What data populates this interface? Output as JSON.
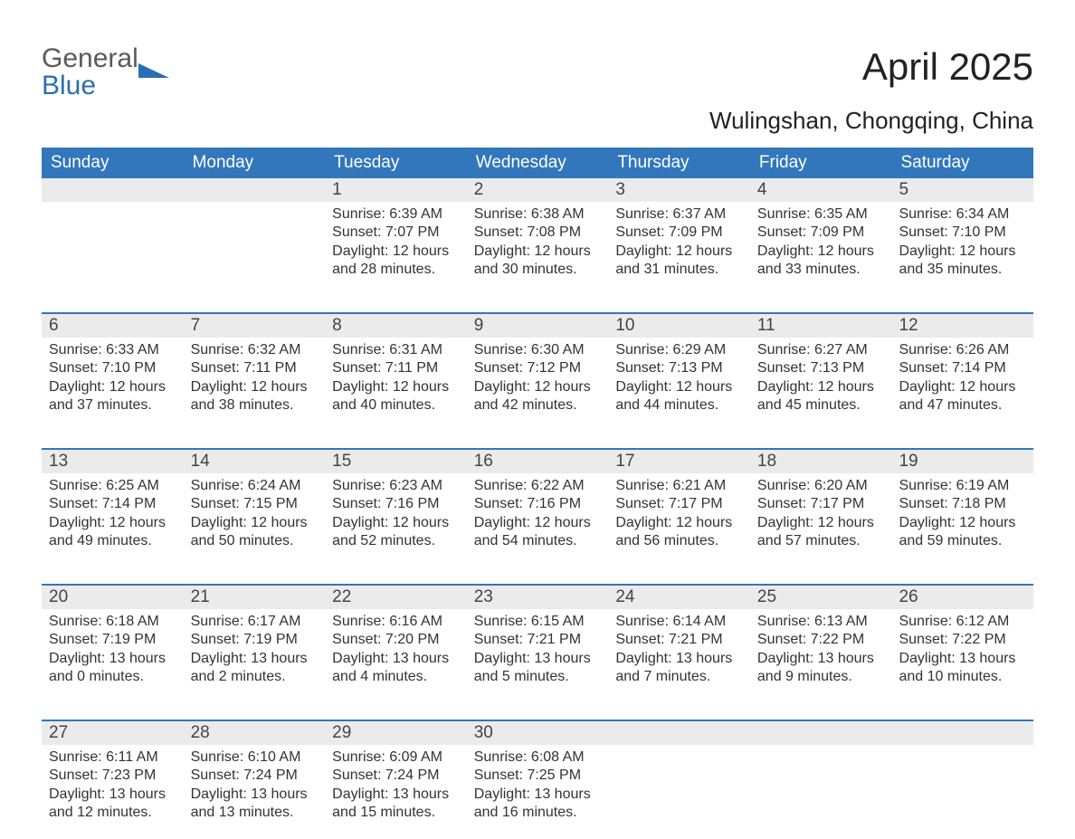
{
  "logo": {
    "line1": "General",
    "line2": "Blue"
  },
  "title": "April 2025",
  "subtitle": "Wulingshan, Chongqing, China",
  "colors": {
    "header_bg": "#3277bc",
    "header_text": "#ffffff",
    "daynum_bg": "#ebebeb",
    "row_divider": "#3277bc",
    "body_text": "#333333",
    "logo_gray": "#5a5a5a",
    "logo_blue": "#2a6fb5",
    "background": "#ffffff"
  },
  "day_names": [
    "Sunday",
    "Monday",
    "Tuesday",
    "Wednesday",
    "Thursday",
    "Friday",
    "Saturday"
  ],
  "weeks": [
    [
      {
        "day": null
      },
      {
        "day": null
      },
      {
        "day": 1,
        "sunrise": "6:39 AM",
        "sunset": "7:07 PM",
        "daylight_h": 12,
        "daylight_m": 28
      },
      {
        "day": 2,
        "sunrise": "6:38 AM",
        "sunset": "7:08 PM",
        "daylight_h": 12,
        "daylight_m": 30
      },
      {
        "day": 3,
        "sunrise": "6:37 AM",
        "sunset": "7:09 PM",
        "daylight_h": 12,
        "daylight_m": 31
      },
      {
        "day": 4,
        "sunrise": "6:35 AM",
        "sunset": "7:09 PM",
        "daylight_h": 12,
        "daylight_m": 33
      },
      {
        "day": 5,
        "sunrise": "6:34 AM",
        "sunset": "7:10 PM",
        "daylight_h": 12,
        "daylight_m": 35
      }
    ],
    [
      {
        "day": 6,
        "sunrise": "6:33 AM",
        "sunset": "7:10 PM",
        "daylight_h": 12,
        "daylight_m": 37
      },
      {
        "day": 7,
        "sunrise": "6:32 AM",
        "sunset": "7:11 PM",
        "daylight_h": 12,
        "daylight_m": 38
      },
      {
        "day": 8,
        "sunrise": "6:31 AM",
        "sunset": "7:11 PM",
        "daylight_h": 12,
        "daylight_m": 40
      },
      {
        "day": 9,
        "sunrise": "6:30 AM",
        "sunset": "7:12 PM",
        "daylight_h": 12,
        "daylight_m": 42
      },
      {
        "day": 10,
        "sunrise": "6:29 AM",
        "sunset": "7:13 PM",
        "daylight_h": 12,
        "daylight_m": 44
      },
      {
        "day": 11,
        "sunrise": "6:27 AM",
        "sunset": "7:13 PM",
        "daylight_h": 12,
        "daylight_m": 45
      },
      {
        "day": 12,
        "sunrise": "6:26 AM",
        "sunset": "7:14 PM",
        "daylight_h": 12,
        "daylight_m": 47
      }
    ],
    [
      {
        "day": 13,
        "sunrise": "6:25 AM",
        "sunset": "7:14 PM",
        "daylight_h": 12,
        "daylight_m": 49
      },
      {
        "day": 14,
        "sunrise": "6:24 AM",
        "sunset": "7:15 PM",
        "daylight_h": 12,
        "daylight_m": 50
      },
      {
        "day": 15,
        "sunrise": "6:23 AM",
        "sunset": "7:16 PM",
        "daylight_h": 12,
        "daylight_m": 52
      },
      {
        "day": 16,
        "sunrise": "6:22 AM",
        "sunset": "7:16 PM",
        "daylight_h": 12,
        "daylight_m": 54
      },
      {
        "day": 17,
        "sunrise": "6:21 AM",
        "sunset": "7:17 PM",
        "daylight_h": 12,
        "daylight_m": 56
      },
      {
        "day": 18,
        "sunrise": "6:20 AM",
        "sunset": "7:17 PM",
        "daylight_h": 12,
        "daylight_m": 57
      },
      {
        "day": 19,
        "sunrise": "6:19 AM",
        "sunset": "7:18 PM",
        "daylight_h": 12,
        "daylight_m": 59
      }
    ],
    [
      {
        "day": 20,
        "sunrise": "6:18 AM",
        "sunset": "7:19 PM",
        "daylight_h": 13,
        "daylight_m": 0
      },
      {
        "day": 21,
        "sunrise": "6:17 AM",
        "sunset": "7:19 PM",
        "daylight_h": 13,
        "daylight_m": 2
      },
      {
        "day": 22,
        "sunrise": "6:16 AM",
        "sunset": "7:20 PM",
        "daylight_h": 13,
        "daylight_m": 4
      },
      {
        "day": 23,
        "sunrise": "6:15 AM",
        "sunset": "7:21 PM",
        "daylight_h": 13,
        "daylight_m": 5
      },
      {
        "day": 24,
        "sunrise": "6:14 AM",
        "sunset": "7:21 PM",
        "daylight_h": 13,
        "daylight_m": 7
      },
      {
        "day": 25,
        "sunrise": "6:13 AM",
        "sunset": "7:22 PM",
        "daylight_h": 13,
        "daylight_m": 9
      },
      {
        "day": 26,
        "sunrise": "6:12 AM",
        "sunset": "7:22 PM",
        "daylight_h": 13,
        "daylight_m": 10
      }
    ],
    [
      {
        "day": 27,
        "sunrise": "6:11 AM",
        "sunset": "7:23 PM",
        "daylight_h": 13,
        "daylight_m": 12
      },
      {
        "day": 28,
        "sunrise": "6:10 AM",
        "sunset": "7:24 PM",
        "daylight_h": 13,
        "daylight_m": 13
      },
      {
        "day": 29,
        "sunrise": "6:09 AM",
        "sunset": "7:24 PM",
        "daylight_h": 13,
        "daylight_m": 15
      },
      {
        "day": 30,
        "sunrise": "6:08 AM",
        "sunset": "7:25 PM",
        "daylight_h": 13,
        "daylight_m": 16
      },
      {
        "day": null
      },
      {
        "day": null
      },
      {
        "day": null
      }
    ]
  ],
  "labels": {
    "sunrise": "Sunrise:",
    "sunset": "Sunset:",
    "daylight_prefix": "Daylight:",
    "hours_word": "hours",
    "and_word": "and",
    "minutes_word": "minutes."
  }
}
